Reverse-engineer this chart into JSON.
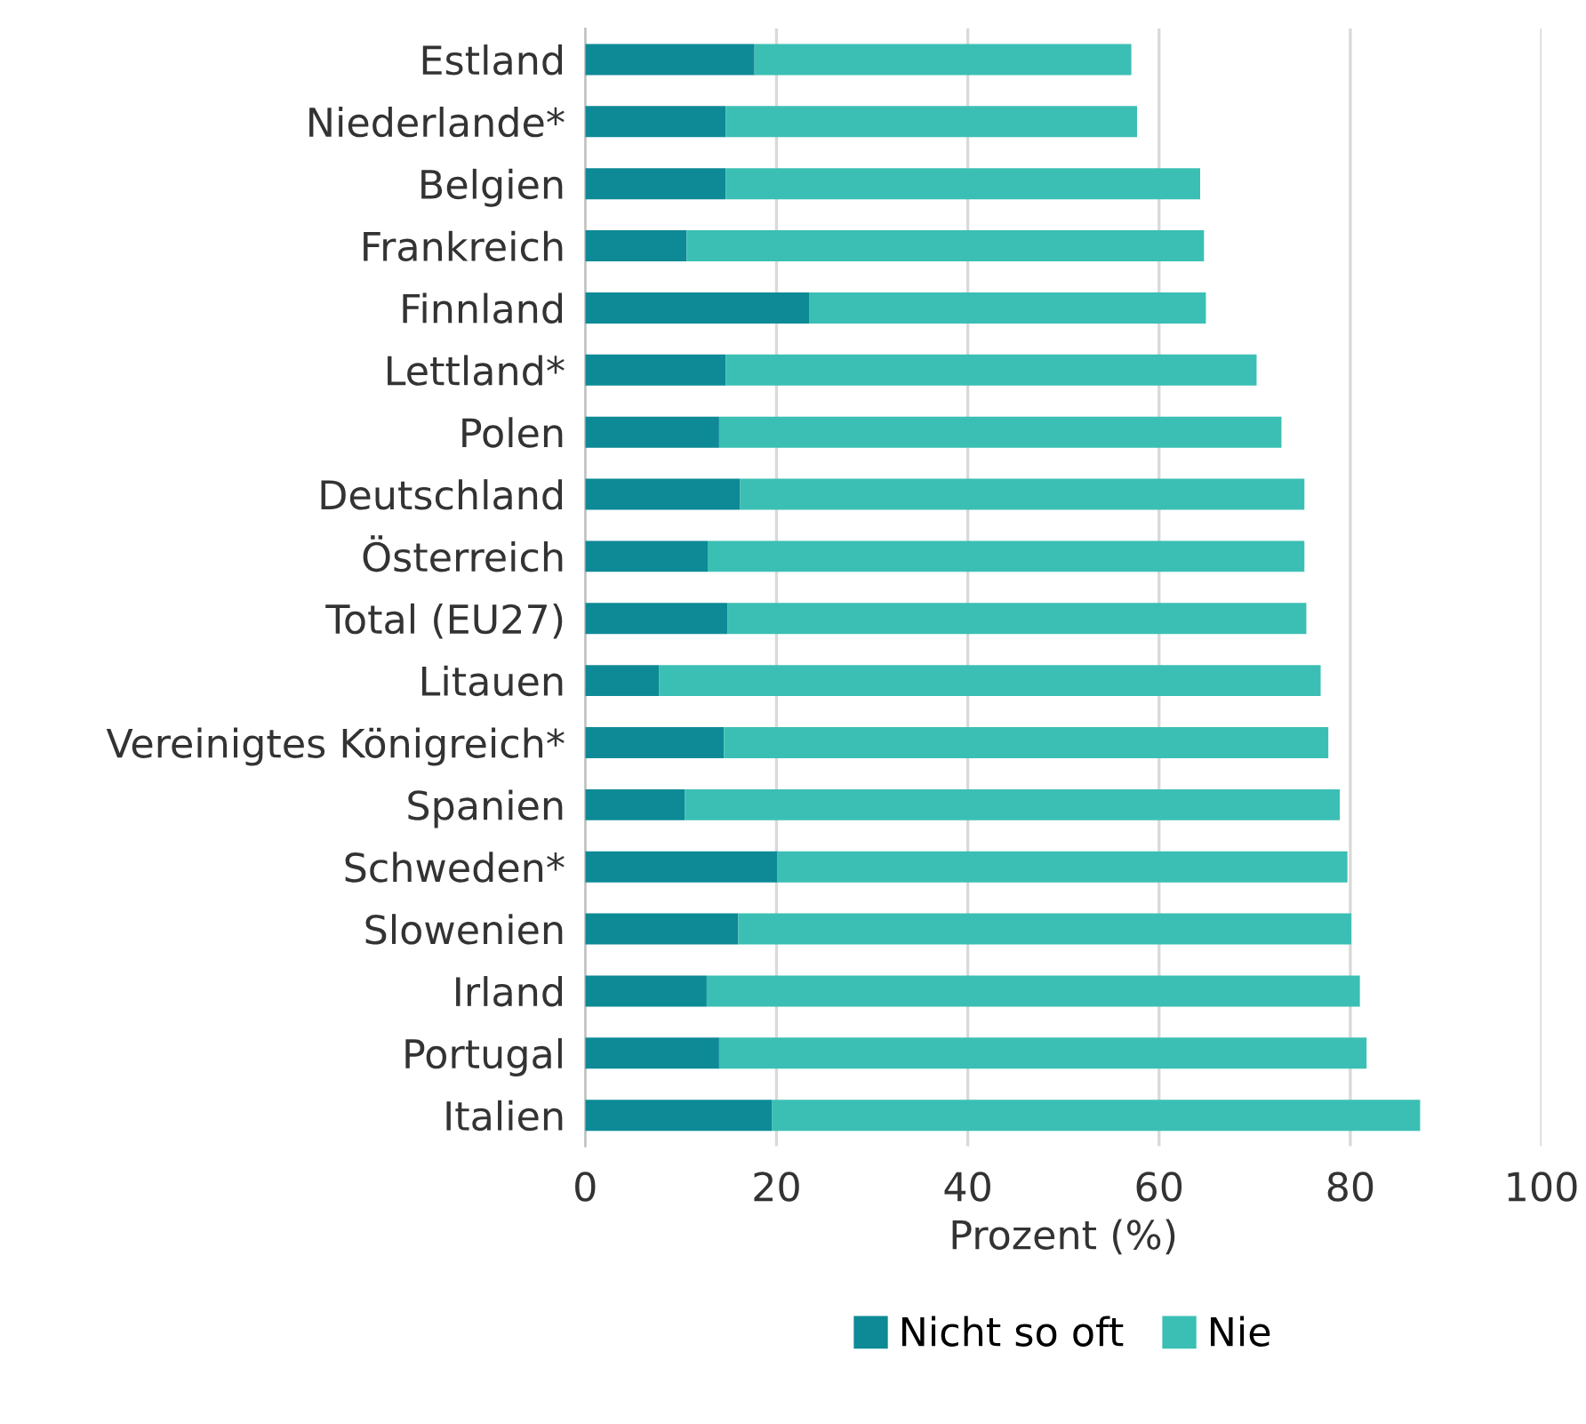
{
  "chart_data": {
    "type": "bar",
    "orientation": "horizontal",
    "stacked": true,
    "categories": [
      "Estland",
      "Niederlande*",
      "Belgien",
      "Frankreich",
      "Finnland",
      "Lettland*",
      "Polen",
      "Deutschland",
      "Österreich",
      "Total (EU27)",
      "Litauen",
      "Vereinigtes Königreich*",
      "Spanien",
      "Schweden*",
      "Slowenien",
      "Irland",
      "Portugal",
      "Italien"
    ],
    "series": [
      {
        "name": "Nicht so oft",
        "color": "#0e8a96",
        "values": [
          17.7,
          14.7,
          14.7,
          10.6,
          23.4,
          14.7,
          14.0,
          16.2,
          12.8,
          14.9,
          7.7,
          14.5,
          10.4,
          20.1,
          16.0,
          12.7,
          14.0,
          19.5
        ]
      },
      {
        "name": "Nie",
        "color": "#3bbfb4",
        "values": [
          39.4,
          43.0,
          49.6,
          54.1,
          41.5,
          55.5,
          58.8,
          59.0,
          62.4,
          60.5,
          69.2,
          63.2,
          68.5,
          59.6,
          64.1,
          68.3,
          67.7,
          67.8
        ]
      }
    ],
    "xlabel": "Prozent (%)",
    "xlim": [
      0,
      100
    ],
    "xticks": [
      0,
      20,
      40,
      60,
      80,
      100
    ],
    "grid": "x",
    "legend": "bottom"
  }
}
